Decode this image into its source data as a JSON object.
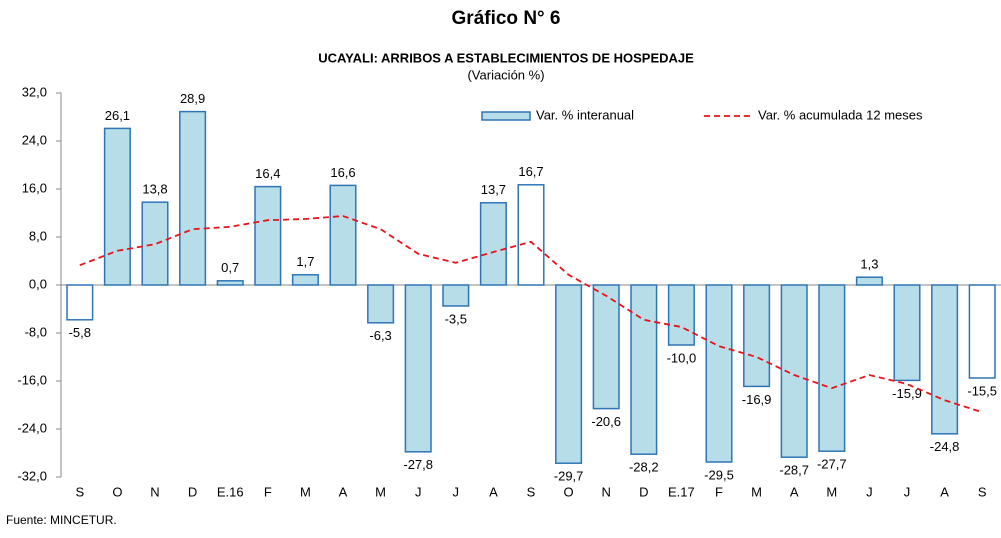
{
  "chart_data": {
    "type": "bar",
    "title": "Gráfico N° 6",
    "subtitle": "UCAYALI: ARRIBOS A ESTABLECIMIENTOS DE HOSPEDAJE",
    "unit_label": "(Variación %)",
    "source": "Fuente: MINCETUR.",
    "categories": [
      "S",
      "O",
      "N",
      "D",
      "E.16",
      "F",
      "M",
      "A",
      "M",
      "J",
      "J",
      "A",
      "S",
      "O",
      "N",
      "D",
      "E.17",
      "F",
      "M",
      "A",
      "M",
      "J",
      "J",
      "A",
      "S"
    ],
    "series": [
      {
        "name": "Var. % interanual",
        "type": "bar",
        "color": "#b7dde8",
        "edgecolor": "#2e75b6",
        "fills": [
          "#ffffff",
          "#b7dde8",
          "#b7dde8",
          "#b7dde8",
          "#b7dde8",
          "#b7dde8",
          "#b7dde8",
          "#b7dde8",
          "#b7dde8",
          "#b7dde8",
          "#b7dde8",
          "#b7dde8",
          "#ffffff",
          "#b7dde8",
          "#b7dde8",
          "#b7dde8",
          "#b7dde8",
          "#b7dde8",
          "#b7dde8",
          "#b7dde8",
          "#b7dde8",
          "#b7dde8",
          "#b7dde8",
          "#b7dde8",
          "#ffffff"
        ],
        "values": [
          -5.8,
          26.1,
          13.8,
          28.9,
          0.7,
          16.4,
          1.7,
          16.6,
          -6.3,
          -27.8,
          -3.5,
          13.7,
          16.7,
          -29.7,
          -20.6,
          -28.2,
          -10.0,
          -29.5,
          -16.9,
          -28.7,
          -27.7,
          1.3,
          -15.9,
          -24.8,
          -15.5
        ],
        "value_labels": [
          "-5,8",
          "26,1",
          "13,8",
          "28,9",
          "0,7",
          "16,4",
          "1,7",
          "16,6",
          "-6,3",
          "-27,8",
          "-3,5",
          "13,7",
          "16,7",
          "-29,7",
          "-20,6",
          "-28,2",
          "-10,0",
          "-29,5",
          "-16,9",
          "-28,7",
          "-27,7",
          "1,3",
          "-15,9",
          "-24,8",
          "-15,5"
        ]
      },
      {
        "name": "Var. % acumulada 12 meses",
        "type": "line",
        "color": "#e8141a",
        "values": [
          3.3,
          5.7,
          6.8,
          9.3,
          9.7,
          10.8,
          11.0,
          11.5,
          9.3,
          5.2,
          3.7,
          5.5,
          7.2,
          1.7,
          -1.8,
          -5.8,
          -7.0,
          -10.2,
          -12.0,
          -15.0,
          -17.2,
          -15.0,
          -16.5,
          -19.2,
          -21.2
        ]
      }
    ],
    "ylim": [
      -32,
      32
    ],
    "yticks": [
      {
        "value": -32,
        "label": "-32,0"
      },
      {
        "value": -24,
        "label": "-24,0"
      },
      {
        "value": -16,
        "label": "-16,0"
      },
      {
        "value": -8,
        "label": "-8,0"
      },
      {
        "value": 0,
        "label": "0,0"
      },
      {
        "value": 8,
        "label": "8,0"
      },
      {
        "value": 16,
        "label": "16,0"
      },
      {
        "value": 24,
        "label": "24,0"
      },
      {
        "value": 32,
        "label": "32,0"
      }
    ],
    "legend": "top-right"
  }
}
